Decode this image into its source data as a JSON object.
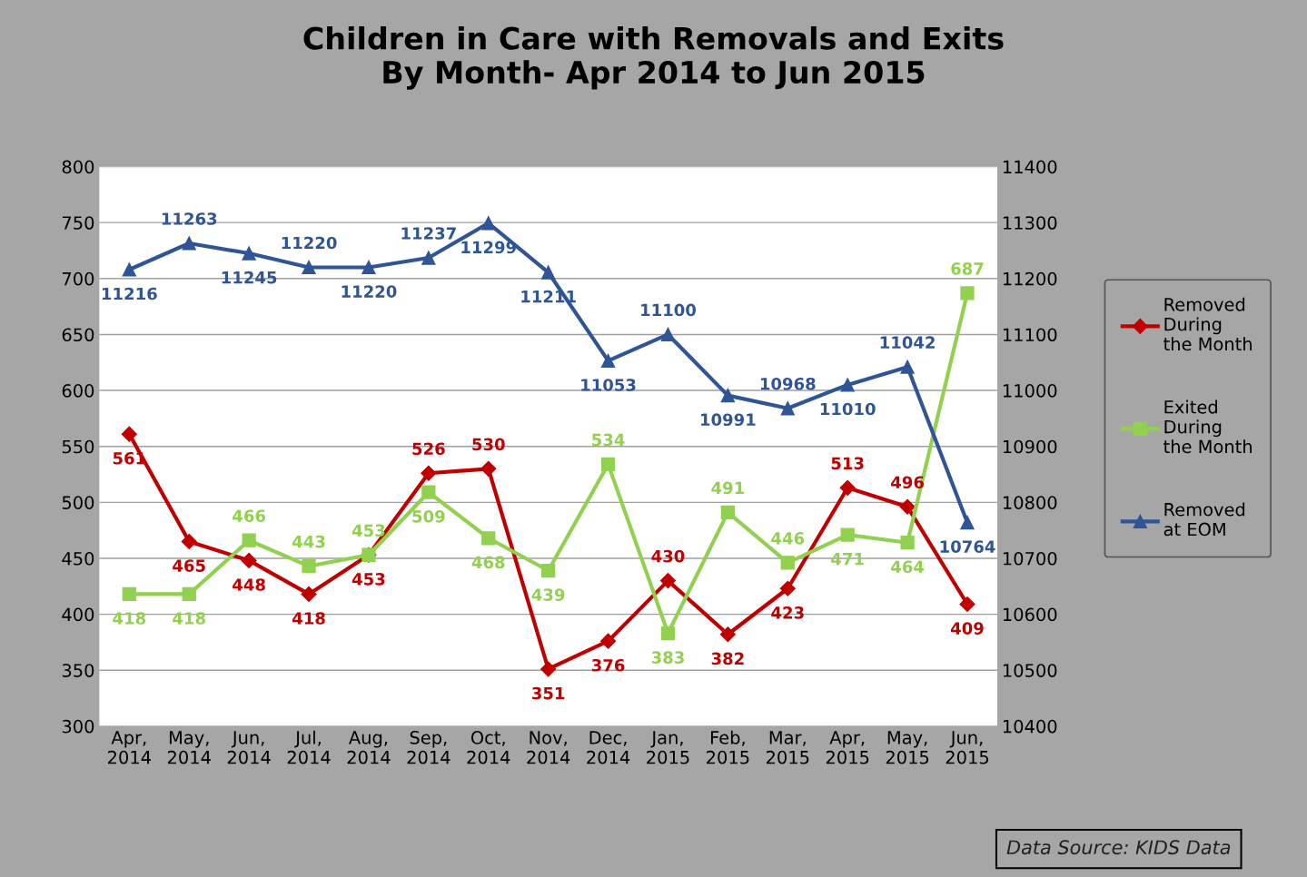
{
  "chart_data": {
    "type": "line",
    "title": "Children in Care with Removals and Exits\nBy Month- Apr 2014 to Jun 2015",
    "categories": [
      "Apr,\n2014",
      "May,\n2014",
      "Jun,\n2014",
      "Jul,\n2014",
      "Aug,\n2014",
      "Sep,\n2014",
      "Oct,\n2014",
      "Nov,\n2014",
      "Dec,\n2014",
      "Jan,\n2015",
      "Feb,\n2015",
      "Mar,\n2015",
      "Apr,\n2015",
      "May,\n2015",
      "Jun,\n2015"
    ],
    "series": [
      {
        "name": "Removed\nDuring\nthe Month",
        "color": "#c00000",
        "marker": "diamond",
        "values": [
          561,
          465,
          448,
          418,
          453,
          526,
          530,
          351,
          376,
          430,
          382,
          423,
          513,
          496,
          409
        ]
      },
      {
        "name": "Exited\nDuring\nthe Month",
        "color": "#92d050",
        "marker": "square",
        "values": [
          418,
          418,
          466,
          443,
          453,
          509,
          468,
          439,
          534,
          383,
          491,
          446,
          471,
          464,
          687
        ]
      },
      {
        "name": "Removed\nat EOM",
        "color": "#2f5597",
        "marker": "triangle",
        "axis": "y2",
        "values": [
          11216,
          11263,
          11245,
          11220,
          11220,
          11237,
          11299,
          11211,
          11053,
          11100,
          10991,
          10968,
          11010,
          11042,
          10764
        ]
      }
    ],
    "ylim": [
      300,
      800
    ],
    "yticks": [
      300,
      350,
      400,
      450,
      500,
      550,
      600,
      650,
      700,
      750,
      800
    ],
    "y2lim": [
      10400,
      11400
    ],
    "y2ticks": [
      10400,
      10500,
      10600,
      10700,
      10800,
      10900,
      11000,
      11100,
      11200,
      11300,
      11400
    ],
    "grid": "y",
    "legend": "right",
    "data_labels": true,
    "annotations": [
      "Data Source: KIDS Data"
    ]
  }
}
